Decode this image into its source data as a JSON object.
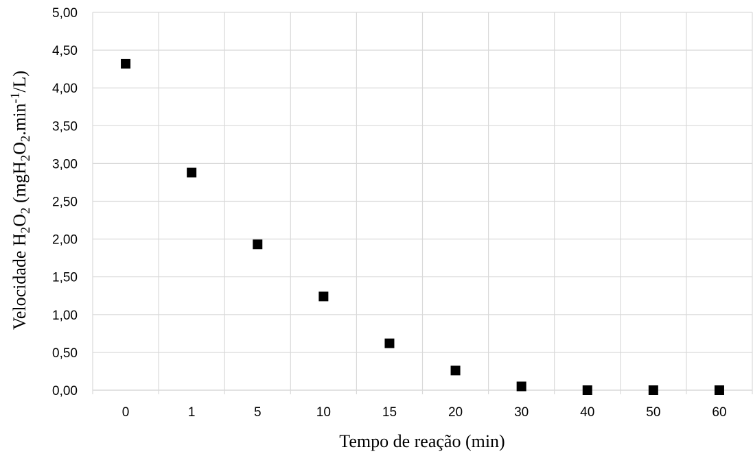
{
  "chart_data": {
    "type": "scatter",
    "categories": [
      "0",
      "1",
      "5",
      "10",
      "15",
      "20",
      "30",
      "40",
      "50",
      "60"
    ],
    "series": [
      {
        "values": [
          4.32,
          2.88,
          1.93,
          1.24,
          0.62,
          0.26,
          0.05,
          0.0,
          0.0,
          0.0
        ]
      }
    ],
    "xlabel": "Tempo de reação (min)",
    "ylabel": {
      "prefix": "Velocidade H",
      "sub1": "2",
      "mid1": "O",
      "sub2": "2",
      "mid2": " (mgH",
      "sub3": "2",
      "mid3": "O",
      "sub4": "2",
      "mid4": ".min",
      "sup1": "-1",
      "suffix": "/L)"
    },
    "yticks": [
      "0,00",
      "0,50",
      "1,00",
      "1,50",
      "2,00",
      "2,50",
      "3,00",
      "3,50",
      "4,00",
      "4,50",
      "5,00"
    ],
    "ylim": [
      0,
      5
    ],
    "grid": true,
    "marker": "square",
    "marker_color": "#000000",
    "grid_color": "#d9d9d9"
  }
}
